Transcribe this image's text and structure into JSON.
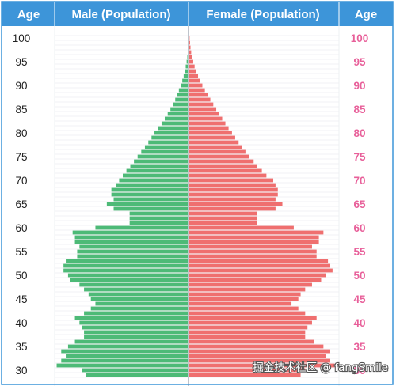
{
  "header": {
    "age_left": "Age",
    "male": "Male (Population)",
    "female": "Female (Population)",
    "age_right": "Age"
  },
  "watermark": "掘金技术社区 @ fangSmile",
  "colors": {
    "header_bg": "#3d95d9",
    "male": "#4dba77",
    "female": "#ef6f6f",
    "right_age_text": "#e8609a"
  },
  "chart_data": {
    "type": "bar",
    "orientation": "horizontal-pyramid",
    "age_range": [
      29,
      101
    ],
    "tick_labels": [
      "100",
      "95",
      "90",
      "85",
      "80",
      "75",
      "70",
      "65",
      "60",
      "55",
      "50",
      "45",
      "40",
      "35",
      "30"
    ],
    "series": [
      {
        "name": "Male (Population)",
        "ages": [
          100,
          99,
          98,
          97,
          96,
          95,
          94,
          93,
          92,
          91,
          90,
          89,
          88,
          87,
          86,
          85,
          84,
          83,
          82,
          81,
          80,
          79,
          78,
          77,
          76,
          75,
          74,
          73,
          72,
          71,
          70,
          69,
          68,
          67,
          66,
          65,
          64,
          63,
          62,
          61,
          60,
          59,
          58,
          57,
          56,
          55,
          54,
          53,
          52,
          51,
          50,
          49,
          48,
          47,
          46,
          45,
          44,
          43,
          42,
          41,
          40,
          39,
          38,
          37,
          36,
          35,
          34,
          33,
          32,
          31,
          30,
          29
        ],
        "values": [
          0.01,
          0.02,
          0.03,
          0.05,
          0.07,
          0.1,
          0.14,
          0.18,
          0.23,
          0.29,
          0.36,
          0.44,
          0.52,
          0.6,
          0.7,
          0.81,
          0.93,
          1.06,
          1.2,
          1.36,
          1.51,
          1.64,
          1.78,
          1.93,
          2.09,
          2.25,
          2.41,
          2.57,
          2.74,
          2.9,
          3.06,
          3.2,
          3.4,
          3.4,
          3.3,
          3.6,
          3.3,
          2.6,
          2.6,
          2.6,
          4.1,
          5.1,
          5.0,
          5.0,
          4.8,
          4.9,
          4.9,
          5.4,
          5.5,
          5.5,
          5.3,
          5.2,
          4.8,
          4.6,
          4.4,
          4.3,
          4.1,
          4.3,
          4.6,
          5.0,
          4.8,
          4.7,
          4.6,
          4.6,
          5.0,
          5.3,
          5.6,
          5.4,
          5.6,
          5.8,
          4.7,
          4.5
        ]
      },
      {
        "name": "Female (Population)",
        "ages": [
          100,
          99,
          98,
          97,
          96,
          95,
          94,
          93,
          92,
          91,
          90,
          89,
          88,
          87,
          86,
          85,
          84,
          83,
          82,
          81,
          80,
          79,
          78,
          77,
          76,
          75,
          74,
          73,
          72,
          71,
          70,
          69,
          68,
          67,
          66,
          65,
          64,
          63,
          62,
          61,
          60,
          59,
          58,
          57,
          56,
          55,
          54,
          53,
          52,
          51,
          50,
          49,
          48,
          47,
          46,
          45,
          44,
          43,
          42,
          41,
          40,
          39,
          38,
          37,
          36,
          35,
          34,
          33,
          32,
          31,
          30,
          29
        ],
        "values": [
          0.03,
          0.05,
          0.07,
          0.1,
          0.14,
          0.19,
          0.25,
          0.32,
          0.4,
          0.49,
          0.59,
          0.7,
          0.82,
          0.94,
          1.07,
          1.2,
          1.33,
          1.46,
          1.6,
          1.74,
          1.89,
          2.03,
          2.18,
          2.33,
          2.48,
          2.65,
          2.84,
          3.0,
          3.2,
          3.4,
          3.7,
          3.8,
          3.9,
          3.9,
          3.8,
          4.1,
          3.8,
          3.0,
          3.0,
          3.0,
          4.6,
          5.9,
          5.7,
          5.7,
          5.4,
          5.6,
          5.6,
          6.1,
          6.2,
          6.3,
          6.0,
          5.8,
          5.4,
          5.1,
          4.9,
          4.8,
          4.5,
          4.8,
          5.1,
          5.6,
          5.4,
          5.2,
          5.1,
          5.1,
          5.5,
          5.9,
          6.2,
          6.0,
          6.2,
          6.4,
          5.1,
          4.9
        ]
      }
    ],
    "value_max": 6.6,
    "grid": true,
    "legend": "none"
  }
}
